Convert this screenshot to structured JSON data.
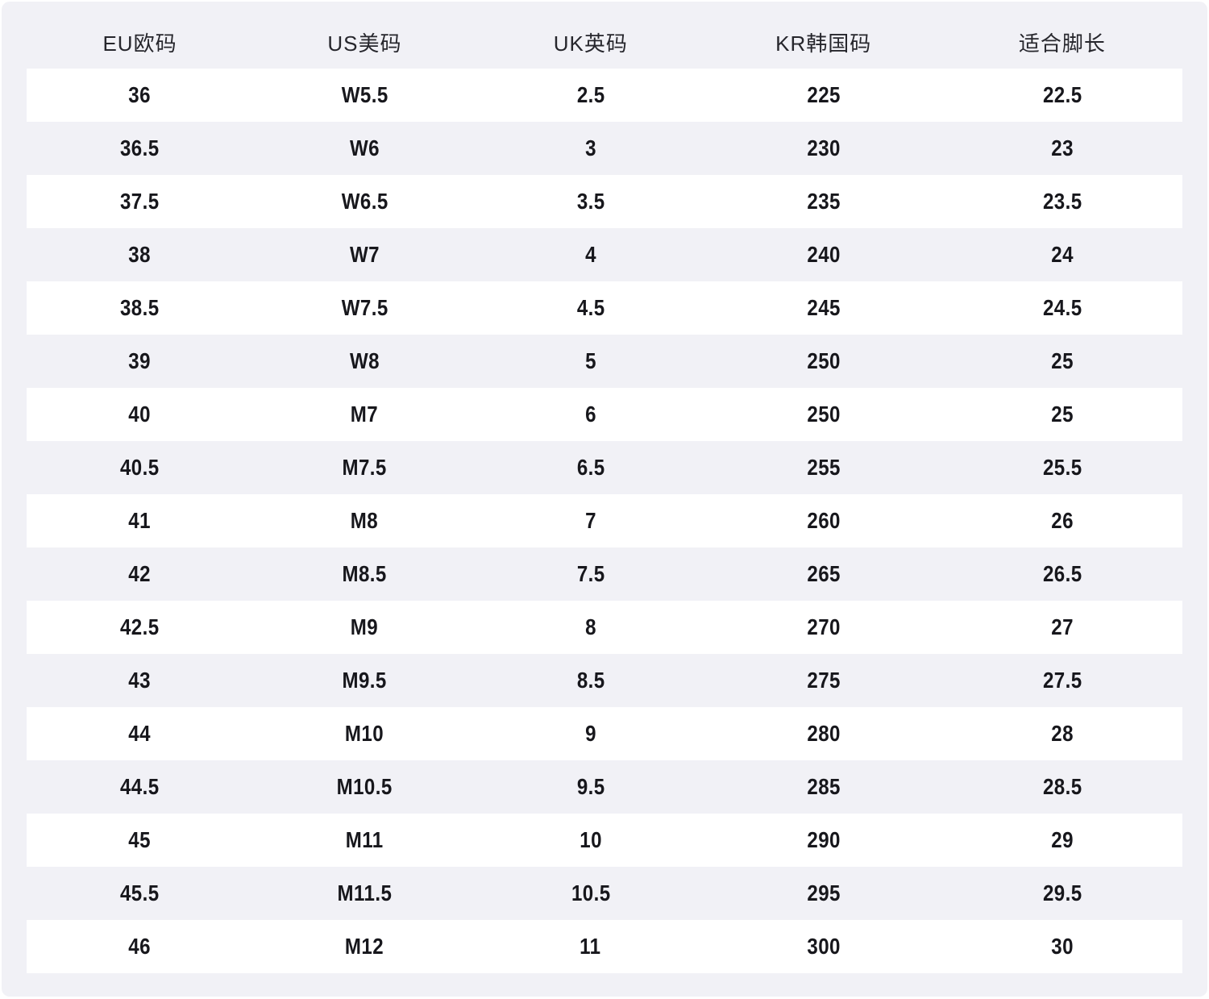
{
  "chart_data": {
    "type": "table",
    "title": "",
    "columns": [
      "EU欧码",
      "US美码",
      "UK英码",
      "KR韩国码",
      "适合脚长"
    ],
    "rows": [
      [
        "36",
        "W5.5",
        "2.5",
        "225",
        "22.5"
      ],
      [
        "36.5",
        "W6",
        "3",
        "230",
        "23"
      ],
      [
        "37.5",
        "W6.5",
        "3.5",
        "235",
        "23.5"
      ],
      [
        "38",
        "W7",
        "4",
        "240",
        "24"
      ],
      [
        "38.5",
        "W7.5",
        "4.5",
        "245",
        "24.5"
      ],
      [
        "39",
        "W8",
        "5",
        "250",
        "25"
      ],
      [
        "40",
        "M7",
        "6",
        "250",
        "25"
      ],
      [
        "40.5",
        "M7.5",
        "6.5",
        "255",
        "25.5"
      ],
      [
        "41",
        "M8",
        "7",
        "260",
        "26"
      ],
      [
        "42",
        "M8.5",
        "7.5",
        "265",
        "26.5"
      ],
      [
        "42.5",
        "M9",
        "8",
        "270",
        "27"
      ],
      [
        "43",
        "M9.5",
        "8.5",
        "275",
        "27.5"
      ],
      [
        "44",
        "M10",
        "9",
        "280",
        "28"
      ],
      [
        "44.5",
        "M10.5",
        "9.5",
        "285",
        "28.5"
      ],
      [
        "45",
        "M11",
        "10",
        "290",
        "29"
      ],
      [
        "45.5",
        "M11.5",
        "10.5",
        "295",
        "29.5"
      ],
      [
        "46",
        "M12",
        "11",
        "300",
        "30"
      ]
    ],
    "layout": {
      "stripe_pattern": "first data row white, alternating",
      "grid": "off",
      "legend": "none"
    }
  },
  "colors": {
    "page_bg": "#ffffff",
    "panel_bg": "#f1f1f6",
    "row_alt_bg": "#ffffff",
    "header_text": "#26262c",
    "cell_text": "#17171c"
  }
}
